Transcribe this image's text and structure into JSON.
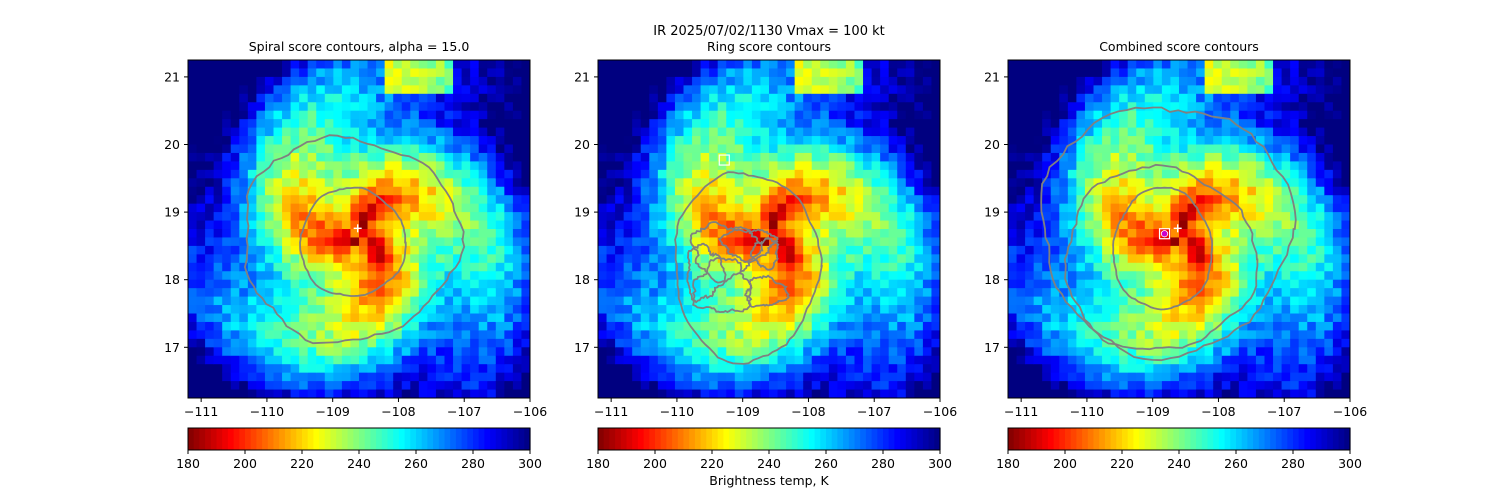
{
  "header": {
    "line1": "IR  2025/07/02/1130    Vmax = 100 kt"
  },
  "chart_data": [
    {
      "type": "heatmap",
      "title": "Spiral score contours, alpha = 15.0",
      "xlim": [
        -111.2,
        -106.0
      ],
      "ylim": [
        16.25,
        21.25
      ],
      "x_ticks": [
        -111,
        -110,
        -109,
        -108,
        -107,
        -106
      ],
      "x_tick_labels": [
        "−111",
        "−110",
        "−109",
        "−108",
        "−107",
        "−106"
      ],
      "y_ticks": [
        17,
        18,
        19,
        20,
        21
      ],
      "y_tick_labels": [
        "17",
        "18",
        "19",
        "20",
        "21"
      ],
      "colorbar": {
        "cmap": "jet_r",
        "range": [
          180,
          300
        ],
        "ticks": [
          180,
          200,
          220,
          240,
          260,
          280,
          300
        ],
        "tick_labels": [
          "180",
          "200",
          "220",
          "240",
          "260",
          "280",
          "300"
        ],
        "label": ""
      },
      "storm_center": {
        "lon": -108.62,
        "lat": 18.76
      },
      "best_fix": null
    },
    {
      "type": "heatmap",
      "title": "Ring score contours",
      "xlim": [
        -111.2,
        -106.0
      ],
      "ylim": [
        16.25,
        21.25
      ],
      "x_ticks": [
        -111,
        -110,
        -109,
        -108,
        -107,
        -106
      ],
      "x_tick_labels": [
        "−111",
        "−110",
        "−109",
        "−108",
        "−107",
        "−106"
      ],
      "y_ticks": [
        17,
        18,
        19,
        20,
        21
      ],
      "y_tick_labels": [
        "17",
        "18",
        "19",
        "20",
        "21"
      ],
      "colorbar": {
        "cmap": "jet_r",
        "range": [
          180,
          300
        ],
        "ticks": [
          180,
          200,
          220,
          240,
          260,
          280,
          300
        ],
        "tick_labels": [
          "180",
          "200",
          "220",
          "240",
          "260",
          "280",
          "300"
        ],
        "label": "Brightness temp, K"
      },
      "storm_center": null,
      "best_fix": {
        "lon": -109.28,
        "lat": 19.77
      }
    },
    {
      "type": "heatmap",
      "title": "Combined score contours",
      "xlim": [
        -111.2,
        -106.0
      ],
      "ylim": [
        16.25,
        21.25
      ],
      "x_ticks": [
        -111,
        -110,
        -109,
        -108,
        -107,
        -106
      ],
      "x_tick_labels": [
        "−111",
        "−110",
        "−109",
        "−108",
        "−107",
        "−106"
      ],
      "y_ticks": [
        17,
        18,
        19,
        20,
        21
      ],
      "y_tick_labels": [
        "17",
        "18",
        "19",
        "20",
        "21"
      ],
      "colorbar": {
        "cmap": "jet_r",
        "range": [
          180,
          300
        ],
        "ticks": [
          180,
          200,
          220,
          240,
          260,
          280,
          300
        ],
        "tick_labels": [
          "180",
          "200",
          "220",
          "240",
          "260",
          "280",
          "300"
        ],
        "label": ""
      },
      "storm_center": {
        "lon": -108.62,
        "lat": 18.76
      },
      "best_fix": {
        "lon": -108.82,
        "lat": 18.68
      }
    }
  ],
  "colors": {
    "contour": "#808080",
    "marker_fix": "#cc00cc",
    "marker_center": "#ffffff"
  }
}
